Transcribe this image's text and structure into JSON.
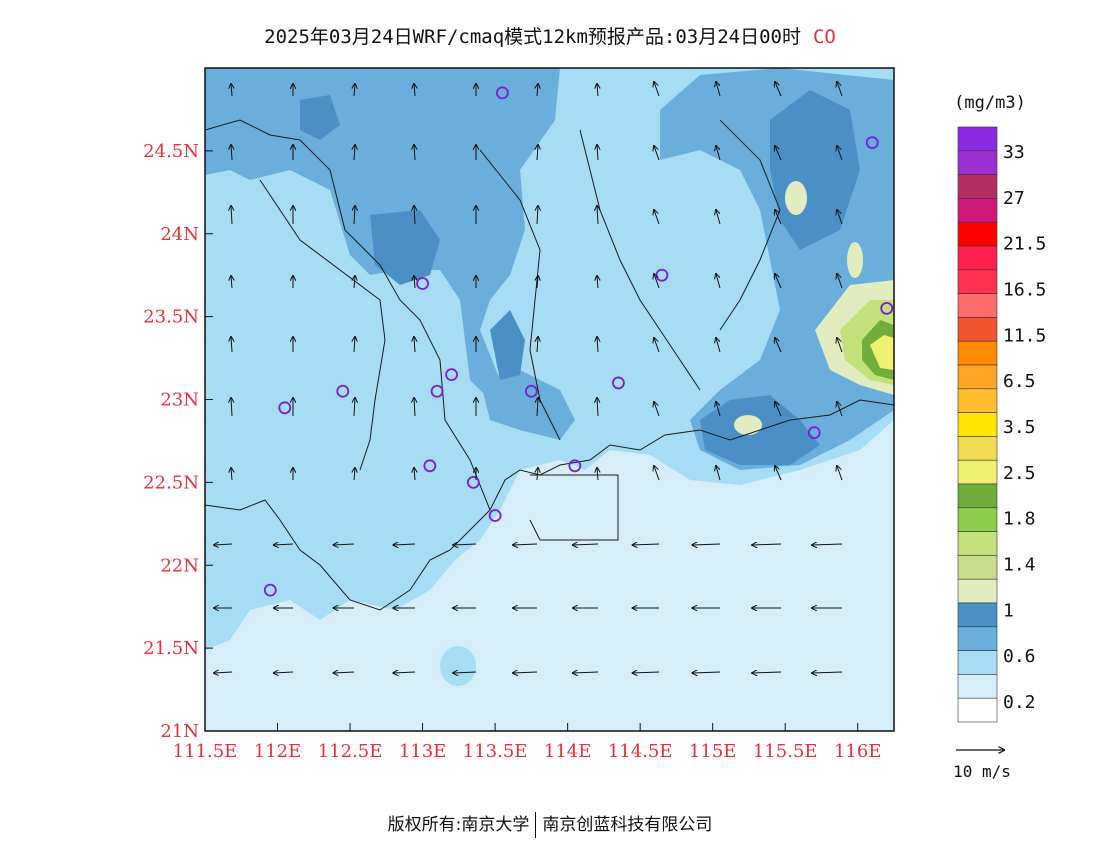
{
  "title": {
    "main": "2025年03月24日WRF/cmaq模式12km预报产品:03月24日00时",
    "species": "CO"
  },
  "colors": {
    "axis_label": "#e8303a",
    "title_species": "#e8303a",
    "station_marker": "#7a1fd6",
    "ocean": "#d6eefa"
  },
  "map": {
    "lon_ticks": [
      "111.5E",
      "112E",
      "112.5E",
      "113E",
      "113.5E",
      "114E",
      "114.5E",
      "115E",
      "115.5E",
      "116E"
    ],
    "lat_ticks": [
      "21N",
      "21.5N",
      "22N",
      "22.5N",
      "23N",
      "23.5N",
      "24N",
      "24.5N"
    ],
    "lon_range": [
      111.5,
      116.25
    ],
    "lat_range": [
      21.0,
      25.0
    ]
  },
  "legend": {
    "unit": "(mg/m3)",
    "labels": [
      "33",
      "27",
      "21.5",
      "16.5",
      "11.5",
      "6.5",
      "3.5",
      "2.5",
      "1.8",
      "1.4",
      "1",
      "0.6",
      "0.2"
    ],
    "colors_top_to_bottom": [
      "#8a2be2",
      "#9d2fd0",
      "#b02e60",
      "#d0187a",
      "#ff0000",
      "#ff1f4e",
      "#ff3050",
      "#ff6a6a",
      "#f05530",
      "#ff8c00",
      "#ffa424",
      "#ffbe30",
      "#ffe600",
      "#f2dc52",
      "#f0f070",
      "#6fae3a",
      "#8fce4a",
      "#c4e07a",
      "#c8dc8a",
      "#e2ecc0",
      "#4a8fc6",
      "#6aaedc",
      "#a6dcf4",
      "#d6eefa",
      "#ffffff"
    ]
  },
  "wind_scale": {
    "label": "10 m/s"
  },
  "stations": [
    {
      "lon": 113.55,
      "lat": 24.85
    },
    {
      "lon": 116.1,
      "lat": 24.55
    },
    {
      "lon": 113.0,
      "lat": 23.7
    },
    {
      "lon": 114.65,
      "lat": 23.75
    },
    {
      "lon": 116.2,
      "lat": 23.55
    },
    {
      "lon": 113.2,
      "lat": 23.15
    },
    {
      "lon": 112.45,
      "lat": 23.05
    },
    {
      "lon": 113.1,
      "lat": 23.05
    },
    {
      "lon": 113.75,
      "lat": 23.05
    },
    {
      "lon": 114.35,
      "lat": 23.1
    },
    {
      "lon": 112.05,
      "lat": 22.95
    },
    {
      "lon": 115.7,
      "lat": 22.8
    },
    {
      "lon": 113.05,
      "lat": 22.6
    },
    {
      "lon": 113.35,
      "lat": 22.5
    },
    {
      "lon": 114.05,
      "lat": 22.6
    },
    {
      "lon": 113.5,
      "lat": 22.3
    },
    {
      "lon": 111.95,
      "lat": 21.85
    }
  ],
  "footer": {
    "left": "版权所有:南京大学",
    "right": "南京创蓝科技有限公司"
  }
}
